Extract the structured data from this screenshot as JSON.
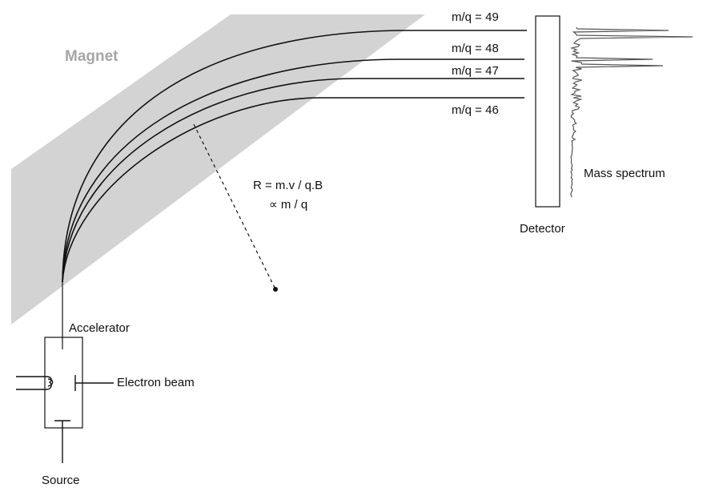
{
  "magnet": {
    "label": "Magnet",
    "color": "#d3d3d3",
    "label_color": "#a6a6a6"
  },
  "trajectories": [
    {
      "label": "m/q = 49"
    },
    {
      "label": "m/q = 48"
    },
    {
      "label": "m/q = 47"
    },
    {
      "label": "m/q = 46"
    }
  ],
  "formula": {
    "line1": "R = m.v / q.B",
    "line2": "∝ m / q"
  },
  "detector": {
    "label": "Detector"
  },
  "spectrum": {
    "label": "Mass spectrum"
  },
  "accelerator": {
    "label": "Accelerator"
  },
  "electron_beam": {
    "label": "Electron beam"
  },
  "source": {
    "label": "Source"
  }
}
